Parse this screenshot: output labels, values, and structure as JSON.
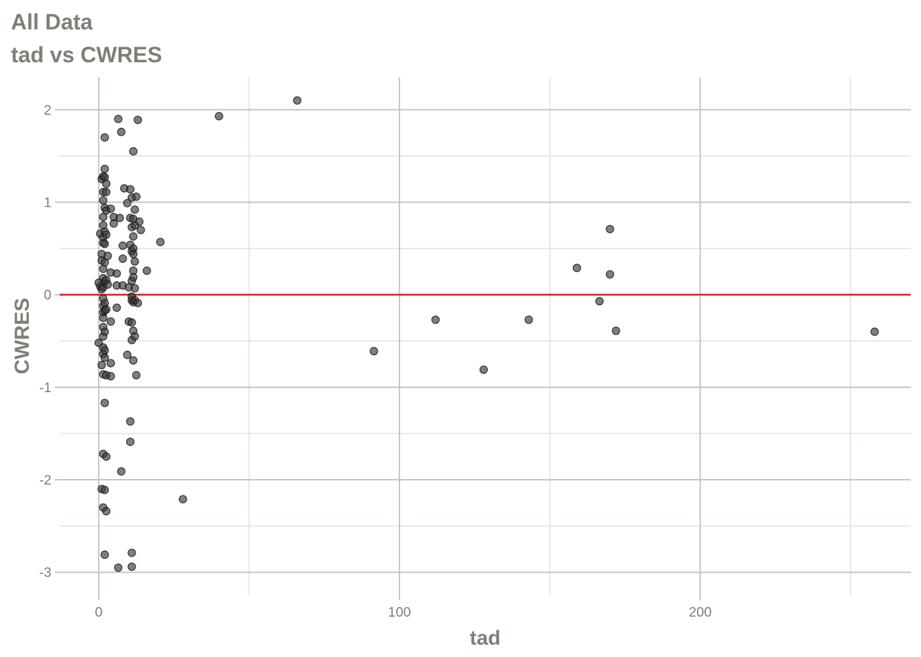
{
  "chart_data": {
    "type": "scatter",
    "title": "All Data",
    "subtitle": "tad vs CWRES",
    "xlabel": "tad",
    "ylabel": "CWRES",
    "xlim": [
      -13,
      270
    ],
    "ylim": [
      -3.25,
      2.35
    ],
    "xticks": [
      0,
      100,
      200
    ],
    "yticks": [
      -3,
      -2,
      -1,
      0,
      1,
      2
    ],
    "x_minor_gridlines": [
      50,
      150,
      250
    ],
    "y_minor_gridlines": [
      -2.5,
      -1.5,
      -0.5,
      0.5,
      1.5
    ],
    "grid": true,
    "reference_line": {
      "y": 0,
      "color": "#e8131b"
    },
    "point_color": "#3a3a3a",
    "points": [
      [
        0,
        0.13
      ],
      [
        0,
        -0.52
      ],
      [
        0.5,
        0.66
      ],
      [
        0.5,
        0.09
      ],
      [
        1,
        1.25
      ],
      [
        1,
        0.44
      ],
      [
        1,
        -0.76
      ],
      [
        1,
        0.06
      ],
      [
        1,
        -2.1
      ],
      [
        1,
        0.37
      ],
      [
        1.5,
        1.28
      ],
      [
        1.5,
        1.02
      ],
      [
        1.5,
        0.62
      ],
      [
        1.5,
        0.56
      ],
      [
        1.5,
        0.28
      ],
      [
        1.5,
        0.18
      ],
      [
        1.5,
        0.08
      ],
      [
        1.5,
        -0.04
      ],
      [
        1.5,
        -0.12
      ],
      [
        1.5,
        -0.19
      ],
      [
        1.5,
        -0.25
      ],
      [
        1.5,
        -0.35
      ],
      [
        1.5,
        -0.45
      ],
      [
        1.5,
        -0.57
      ],
      [
        1.5,
        -0.64
      ],
      [
        1.5,
        -0.86
      ],
      [
        1.5,
        1.11
      ],
      [
        1.5,
        0.84
      ],
      [
        1.5,
        0.75
      ],
      [
        1.5,
        -1.72
      ],
      [
        1.5,
        -2.3
      ],
      [
        2,
        1.7
      ],
      [
        2,
        1.36
      ],
      [
        2,
        1.27
      ],
      [
        2,
        0.94
      ],
      [
        2,
        0.68
      ],
      [
        2,
        0.55
      ],
      [
        2,
        0.35
      ],
      [
        2,
        0.14
      ],
      [
        2,
        -0.09
      ],
      [
        2,
        -0.17
      ],
      [
        2,
        -0.4
      ],
      [
        2,
        -0.6
      ],
      [
        2,
        -0.68
      ],
      [
        2,
        -1.17
      ],
      [
        2,
        -2.11
      ],
      [
        2,
        -2.81
      ],
      [
        2.5,
        1.2
      ],
      [
        2.5,
        1.11
      ],
      [
        2.5,
        0.91
      ],
      [
        2.5,
        0.65
      ],
      [
        2.5,
        0.16
      ],
      [
        2.5,
        -0.16
      ],
      [
        2.5,
        -0.87
      ],
      [
        2.5,
        -1.75
      ],
      [
        2.5,
        -2.34
      ],
      [
        3,
        0.42
      ],
      [
        3,
        0.11
      ],
      [
        4,
        0.24
      ],
      [
        4,
        -0.29
      ],
      [
        4,
        -0.74
      ],
      [
        4,
        -0.88
      ],
      [
        4,
        0.93
      ],
      [
        5,
        0.84
      ],
      [
        5,
        0.77
      ],
      [
        6,
        0.23
      ],
      [
        6,
        0.1
      ],
      [
        6,
        -0.14
      ],
      [
        6.5,
        1.9
      ],
      [
        6.5,
        -2.95
      ],
      [
        7,
        0.83
      ],
      [
        7.5,
        1.76
      ],
      [
        7.5,
        -1.91
      ],
      [
        8,
        0.1
      ],
      [
        8,
        0.39
      ],
      [
        8,
        0.53
      ],
      [
        8.5,
        1.15
      ],
      [
        9.5,
        0.99
      ],
      [
        9.5,
        -0.65
      ],
      [
        10,
        0.08
      ],
      [
        10,
        -0.29
      ],
      [
        10.5,
        1.14
      ],
      [
        10.5,
        0.83
      ],
      [
        10.5,
        0.54
      ],
      [
        10.5,
        -1.37
      ],
      [
        10.5,
        -1.59
      ],
      [
        11,
        1.05
      ],
      [
        11,
        0.73
      ],
      [
        11,
        0.47
      ],
      [
        11,
        0.15
      ],
      [
        11,
        -0.02
      ],
      [
        11,
        -0.06
      ],
      [
        11,
        -0.3
      ],
      [
        11,
        -0.49
      ],
      [
        11,
        -2.79
      ],
      [
        11,
        -2.94
      ],
      [
        11.5,
        1.55
      ],
      [
        11.5,
        0.82
      ],
      [
        11.5,
        0.63
      ],
      [
        11.5,
        0.5
      ],
      [
        11.5,
        0.44
      ],
      [
        11.5,
        0.26
      ],
      [
        11.5,
        0.19
      ],
      [
        11.5,
        -0.08
      ],
      [
        11.5,
        -0.39
      ],
      [
        11.5,
        -0.71
      ],
      [
        12,
        0.92
      ],
      [
        12,
        0.75
      ],
      [
        12,
        0.36
      ],
      [
        12,
        0.07
      ],
      [
        12,
        -0.06
      ],
      [
        12,
        -0.45
      ],
      [
        12.5,
        1.06
      ],
      [
        12.5,
        -0.87
      ],
      [
        13,
        1.89
      ],
      [
        13,
        -0.09
      ],
      [
        13.5,
        0.79
      ],
      [
        14,
        0.7
      ],
      [
        16,
        0.26
      ],
      [
        20.5,
        0.57
      ],
      [
        28,
        -2.21
      ],
      [
        40,
        1.93
      ],
      [
        66,
        2.1
      ],
      [
        91.5,
        -0.61
      ],
      [
        112,
        -0.27
      ],
      [
        128,
        -0.81
      ],
      [
        143,
        -0.27
      ],
      [
        159,
        0.29
      ],
      [
        166.5,
        -0.07
      ],
      [
        170,
        0.71
      ],
      [
        170,
        0.22
      ],
      [
        172,
        -0.39
      ],
      [
        258,
        -0.4
      ]
    ]
  }
}
